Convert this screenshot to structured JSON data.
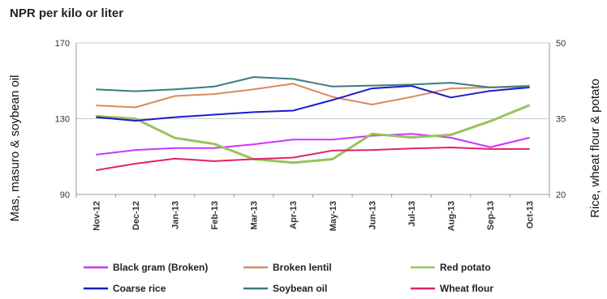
{
  "chart_data": {
    "type": "line",
    "title": "NPR per kilo or liter",
    "categories": [
      "Nov-12",
      "Dec-12",
      "Jan-13",
      "Feb-13",
      "Mar-13",
      "Apr-13",
      "May-13",
      "Jun-13",
      "Jul-13",
      "Aug-13",
      "Sep-13",
      "Oct-13"
    ],
    "ylabel_left": "Mas, masuro & soybean oil",
    "ylabel_right": "Rice, wheat flour & potato",
    "ylim_left": [
      90,
      170
    ],
    "yticks_left": [
      "90",
      "130",
      "170"
    ],
    "ylim_right": [
      20,
      50
    ],
    "yticks_right": [
      "20",
      "35",
      "50"
    ],
    "grid": "horizontal",
    "legend_position": "bottom",
    "series": [
      {
        "name": "Black gram (Broken)",
        "axis": "left",
        "color": "#cc33ff",
        "values": [
          111,
          113.5,
          114.5,
          114.5,
          116.5,
          119,
          119,
          121,
          122,
          120,
          115,
          120
        ]
      },
      {
        "name": "Broken lentil",
        "axis": "left",
        "color": "#d98a5c",
        "values": [
          137,
          136,
          142,
          143,
          145.5,
          148.5,
          141.5,
          137.5,
          141.5,
          146,
          146.5,
          147.5
        ]
      },
      {
        "name": "Red potato",
        "axis": "right",
        "color": "#99c25e",
        "values": [
          35.5,
          35,
          31.2,
          30,
          27,
          26.3,
          27,
          32,
          31.3,
          31.8,
          34.5,
          37.7
        ]
      },
      {
        "name": "Coarse rice",
        "axis": "right",
        "color": "#1a1acc",
        "values": [
          35.3,
          34.6,
          35.3,
          35.8,
          36.3,
          36.6,
          38.7,
          41,
          41.5,
          39.2,
          40.5,
          41.2
        ]
      },
      {
        "name": "Soybean oil",
        "axis": "left",
        "color": "#3d7a80",
        "values": [
          145.5,
          144.5,
          145.5,
          147,
          152,
          151,
          147,
          147.5,
          148,
          149,
          146.5,
          147
        ]
      },
      {
        "name": "Wheat flour",
        "axis": "right",
        "color": "#e0206a",
        "values": [
          24.8,
          26.1,
          27.1,
          26.6,
          27,
          27.3,
          28.7,
          28.8,
          29.1,
          29.3,
          29,
          29
        ]
      }
    ]
  }
}
